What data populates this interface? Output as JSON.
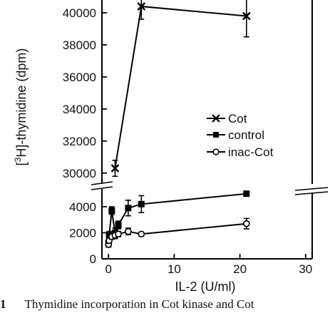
{
  "chart_data": {
    "type": "line",
    "ylabel_prefix": "[",
    "ylabel_sup": "3",
    "ylabel_rest": "H]-thymidine (dpm)",
    "xlabel": "IL-2 (U/ml)",
    "xlim": [
      -1,
      31
    ],
    "xticks": [
      0,
      10,
      20,
      30
    ],
    "xtick_labels": [
      "0",
      "10",
      "20",
      "30"
    ],
    "ylim_lower": [
      0,
      5200
    ],
    "ylim_upper": [
      29500,
      40800
    ],
    "yticks": [
      0,
      2000,
      4000,
      30000,
      32000,
      34000,
      36000,
      38000,
      40000
    ],
    "ytick_labels": [
      "0",
      "2000",
      "4000",
      "30000",
      "32000",
      "34000",
      "36000",
      "38000",
      "40000"
    ],
    "axis_break": true,
    "legend_position": "center-right",
    "series": [
      {
        "name": "Cot",
        "marker": "x",
        "color": "#000000",
        "x": [
          1,
          5,
          21
        ],
        "y": [
          30300,
          40400,
          39800
        ],
        "err": [
          500,
          800,
          1300
        ]
      },
      {
        "name": "control",
        "marker": "filled-square",
        "color": "#000000",
        "x": [
          0,
          0.1,
          0.5,
          1,
          1.5,
          3,
          5,
          21
        ],
        "y": [
          1200,
          1800,
          3700,
          2000,
          2600,
          3900,
          4200,
          5000
        ],
        "err": [
          200,
          300,
          300,
          350,
          300,
          600,
          650,
          0
        ]
      },
      {
        "name": "inac-Cot",
        "marker": "open-circle",
        "color": "#000000",
        "x": [
          0,
          0.1,
          0.5,
          1,
          1.5,
          3,
          5,
          21
        ],
        "y": [
          1100,
          1400,
          1700,
          1800,
          1900,
          2100,
          1900,
          2700
        ],
        "err": [
          200,
          200,
          200,
          250,
          200,
          250,
          150,
          400
        ]
      }
    ]
  },
  "caption": {
    "number": "1",
    "text": "Thymidine incorporation in Cot kinase and Cot"
  }
}
